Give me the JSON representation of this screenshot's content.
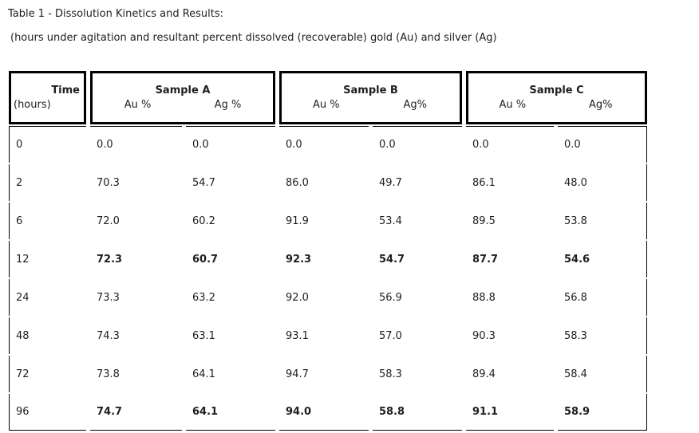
{
  "title": "Table 1 - Dissolution Kinetics and Results:",
  "subtitle": "(hours under agitation and resultant percent dissolved (recoverable) gold (Au) and silver (Ag)",
  "table": {
    "header": {
      "time_label": "Time",
      "time_unit": "(hours)",
      "samples": [
        {
          "name": "Sample A",
          "au_label": "Au %",
          "ag_label": "Ag %"
        },
        {
          "name": "Sample B",
          "au_label": "Au %",
          "ag_label": "Ag%"
        },
        {
          "name": "Sample C",
          "au_label": "Au %",
          "ag_label": "Ag%"
        }
      ]
    },
    "rows": [
      {
        "time": "0",
        "values": [
          "0.0",
          "0.0",
          "0.0",
          "0.0",
          "0.0",
          "0.0"
        ],
        "bold": false
      },
      {
        "time": "2",
        "values": [
          "70.3",
          "54.7",
          "86.0",
          "49.7",
          "86.1",
          "48.0"
        ],
        "bold": false
      },
      {
        "time": "6",
        "values": [
          "72.0",
          "60.2",
          "91.9",
          "53.4",
          "89.5",
          "53.8"
        ],
        "bold": false
      },
      {
        "time": "12",
        "values": [
          "72.3",
          "60.7",
          "92.3",
          "54.7",
          "87.7",
          "54.6"
        ],
        "bold": true
      },
      {
        "time": "24",
        "values": [
          "73.3",
          "63.2",
          "92.0",
          "56.9",
          "88.8",
          "56.8"
        ],
        "bold": false
      },
      {
        "time": "48",
        "values": [
          "74.3",
          "63.1",
          "93.1",
          "57.0",
          "90.3",
          "58.3"
        ],
        "bold": false
      },
      {
        "time": "72",
        "values": [
          "73.8",
          "64.1",
          "94.7",
          "58.3",
          "89.4",
          "58.4"
        ],
        "bold": false
      },
      {
        "time": "96",
        "values": [
          "74.7",
          "64.1",
          "94.0",
          "58.8",
          "91.1",
          "58.9"
        ],
        "bold": true
      }
    ]
  },
  "colors": {
    "border": "#000000",
    "text": "#1f1f1f",
    "background": "#ffffff"
  }
}
